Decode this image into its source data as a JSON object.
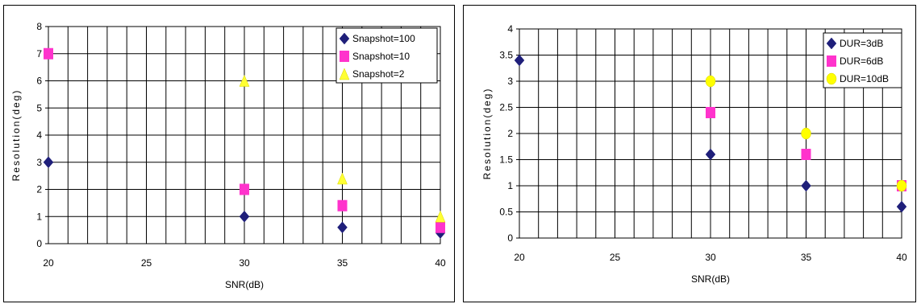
{
  "chart_data": [
    {
      "type": "scatter",
      "title": "",
      "xlabel": "SNR(dB)",
      "ylabel": "Resolution(deg)",
      "xlim": [
        20,
        40
      ],
      "ylim": [
        0,
        8
      ],
      "x_ticks": [
        "20",
        "25",
        "30",
        "35",
        "40"
      ],
      "y_ticks": [
        "0",
        "1",
        "2",
        "3",
        "4",
        "5",
        "6",
        "7",
        "8"
      ],
      "grid": true,
      "legend_position": "top-right",
      "series": [
        {
          "name": "Snapshot=100",
          "marker": "diamond",
          "color": "#1f1f7a",
          "points": [
            [
              20,
              3.0
            ],
            [
              30,
              1.0
            ],
            [
              35,
              0.6
            ],
            [
              40,
              0.4
            ]
          ]
        },
        {
          "name": "Snapshot=10",
          "marker": "square",
          "color": "#ff33cc",
          "points": [
            [
              20,
              7.0
            ],
            [
              30,
              2.0
            ],
            [
              35,
              1.4
            ],
            [
              40,
              0.6
            ]
          ]
        },
        {
          "name": "Snapshot=2",
          "marker": "triangle",
          "color": "#ffff33",
          "points": [
            [
              30,
              6.0
            ],
            [
              35,
              2.4
            ],
            [
              40,
              1.0
            ]
          ]
        }
      ]
    },
    {
      "type": "scatter",
      "title": "",
      "xlabel": "SNR(dB)",
      "ylabel": "Resolution(deg)",
      "xlim": [
        20,
        40
      ],
      "ylim": [
        0,
        4
      ],
      "x_ticks": [
        "20",
        "25",
        "30",
        "35",
        "40"
      ],
      "y_ticks": [
        "0",
        "0.5",
        "1",
        "1.5",
        "2",
        "2.5",
        "3",
        "3.5",
        "4"
      ],
      "grid": true,
      "legend_position": "top-right",
      "series": [
        {
          "name": "DUR=3dB",
          "marker": "diamond",
          "color": "#1f1f7a",
          "points": [
            [
              20,
              3.4
            ],
            [
              30,
              1.6
            ],
            [
              35,
              1.0
            ],
            [
              40,
              0.6
            ]
          ]
        },
        {
          "name": "DUR=6dB",
          "marker": "square",
          "color": "#ff33cc",
          "points": [
            [
              30,
              2.4
            ],
            [
              35,
              1.6
            ],
            [
              40,
              1.0
            ]
          ]
        },
        {
          "name": "DUR=10dB",
          "marker": "circle",
          "color": "#ffff00",
          "points": [
            [
              30,
              3.0
            ],
            [
              35,
              2.0
            ],
            [
              40,
              1.0
            ]
          ]
        }
      ]
    }
  ]
}
